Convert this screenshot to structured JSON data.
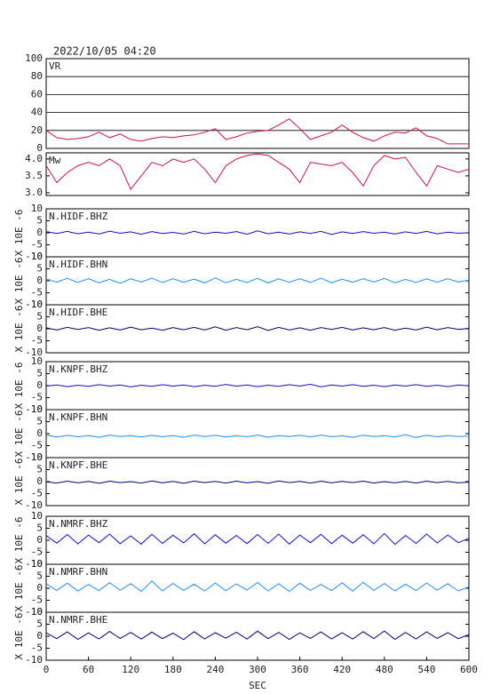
{
  "title": "2022/10/05 04:20",
  "chart_data": [
    {
      "type": "line",
      "grid": true,
      "ylim": [
        0,
        100
      ],
      "yticks": [
        0,
        20,
        40,
        60,
        80,
        100
      ],
      "x": [
        0,
        15,
        30,
        45,
        60,
        75,
        90,
        105,
        120,
        135,
        150,
        165,
        180,
        195,
        210,
        225,
        240,
        255,
        270,
        285,
        300,
        315,
        330,
        345,
        360,
        375,
        390,
        405,
        420,
        435,
        450,
        465,
        480,
        495,
        510,
        525,
        540,
        555,
        570,
        585,
        600
      ],
      "series": [
        {
          "name": "VR",
          "color": "#d0104c",
          "values": [
            20,
            12,
            10,
            11,
            13,
            18,
            12,
            16,
            10,
            8,
            11,
            13,
            12,
            14,
            15,
            18,
            22,
            10,
            13,
            17,
            19,
            20,
            26,
            33,
            22,
            10,
            14,
            18,
            26,
            18,
            12,
            8,
            14,
            18,
            17,
            23,
            14,
            11,
            5,
            5,
            5
          ]
        }
      ]
    },
    {
      "type": "line",
      "grid": false,
      "ylim": [
        2.92,
        4.18
      ],
      "yticks": [
        {
          "value": 3,
          "label": "3.0"
        },
        3.5,
        {
          "value": 4,
          "label": "4.0"
        }
      ],
      "x": [
        0,
        15,
        30,
        45,
        60,
        75,
        90,
        105,
        120,
        135,
        150,
        165,
        180,
        195,
        210,
        225,
        240,
        255,
        270,
        285,
        300,
        315,
        330,
        345,
        360,
        375,
        390,
        405,
        420,
        435,
        450,
        465,
        480,
        495,
        510,
        525,
        540,
        555,
        570,
        585,
        600
      ],
      "series": [
        {
          "name": "Mw",
          "color": "#d0104c",
          "values": [
            3.8,
            3.3,
            3.6,
            3.8,
            3.9,
            3.8,
            4.0,
            3.8,
            3.1,
            3.5,
            3.9,
            3.8,
            4.0,
            3.9,
            4.0,
            3.7,
            3.3,
            3.8,
            4.0,
            4.1,
            4.15,
            4.1,
            3.9,
            3.7,
            3.3,
            3.9,
            3.85,
            3.8,
            3.9,
            3.6,
            3.2,
            3.8,
            4.1,
            4.0,
            4.05,
            3.6,
            3.2,
            3.8,
            3.7,
            3.6,
            3.7
          ]
        }
      ]
    },
    {
      "type": "line",
      "ylabel": "X 10E -6",
      "ylim": [
        -10,
        10
      ],
      "yticks": [
        10,
        5,
        0,
        -5,
        -10
      ],
      "x": [
        0,
        15,
        30,
        45,
        60,
        75,
        90,
        105,
        120,
        135,
        150,
        165,
        180,
        195,
        210,
        225,
        240,
        255,
        270,
        285,
        300,
        315,
        330,
        345,
        360,
        375,
        390,
        405,
        420,
        435,
        450,
        465,
        480,
        495,
        510,
        525,
        540,
        555,
        570,
        585,
        600
      ],
      "series": [
        {
          "name": "N.HIDF.BHZ",
          "color": "#1010d0",
          "values": [
            0.5,
            -0.3,
            0.6,
            -0.4,
            0.3,
            -0.5,
            0.7,
            -0.2,
            0.4,
            -0.6,
            0.5,
            -0.3,
            0.2,
            -0.5,
            0.6,
            -0.4,
            0.3,
            -0.2,
            0.5,
            -0.6,
            0.8,
            -0.4,
            0.3,
            -0.5,
            0.4,
            -0.3,
            0.6,
            -0.7,
            0.4,
            -0.3,
            0.5,
            -0.2,
            0.3,
            -0.5,
            0.4,
            -0.3,
            0.6,
            -0.4,
            0.3,
            -0.2,
            0.1
          ]
        }
      ]
    },
    {
      "type": "line",
      "ylabel": "X 10E -6",
      "ylim": [
        -10,
        10
      ],
      "yticks": [
        10,
        5,
        0,
        -5,
        -10
      ],
      "x": [
        0,
        15,
        30,
        45,
        60,
        75,
        90,
        105,
        120,
        135,
        150,
        165,
        180,
        195,
        210,
        225,
        240,
        255,
        270,
        285,
        300,
        315,
        330,
        345,
        360,
        375,
        390,
        405,
        420,
        435,
        450,
        465,
        480,
        495,
        510,
        525,
        540,
        555,
        570,
        585,
        600
      ],
      "series": [
        {
          "name": "N.HIDF.BHN",
          "color": "#1e90ff",
          "values": [
            0.8,
            -0.6,
            1.0,
            -0.7,
            0.9,
            -0.8,
            0.6,
            -1.0,
            0.8,
            -0.5,
            1.1,
            -0.7,
            0.9,
            -0.6,
            0.7,
            -0.9,
            1.2,
            -0.8,
            0.6,
            -0.7,
            1.0,
            -0.9,
            0.8,
            -0.6,
            0.9,
            -0.7,
            1.1,
            -0.8,
            0.7,
            -0.6,
            0.9,
            -0.5,
            1.0,
            -0.8,
            0.6,
            -0.7,
            0.8,
            -0.6,
            0.9,
            -0.5,
            0.3
          ]
        }
      ]
    },
    {
      "type": "line",
      "ylabel": "X 10E -6",
      "ylim": [
        -10,
        10
      ],
      "yticks": [
        10,
        5,
        0,
        -5,
        -10
      ],
      "x": [
        0,
        15,
        30,
        45,
        60,
        75,
        90,
        105,
        120,
        135,
        150,
        165,
        180,
        195,
        210,
        225,
        240,
        255,
        270,
        285,
        300,
        315,
        330,
        345,
        360,
        375,
        390,
        405,
        420,
        435,
        450,
        465,
        480,
        495,
        510,
        525,
        540,
        555,
        570,
        585,
        600
      ],
      "series": [
        {
          "name": "N.HIDF.BHE",
          "color": "#000080",
          "values": [
            0.4,
            -0.5,
            0.6,
            -0.3,
            0.5,
            -0.6,
            0.4,
            -0.5,
            0.7,
            -0.4,
            0.3,
            -0.6,
            0.5,
            -0.4,
            0.6,
            -0.5,
            0.8,
            -0.6,
            0.5,
            -0.4,
            0.9,
            -0.7,
            0.6,
            -0.5,
            0.4,
            -0.6,
            0.5,
            -0.3,
            0.6,
            -0.5,
            0.4,
            -0.4,
            0.5,
            -0.6,
            0.3,
            -0.5,
            0.7,
            -0.4,
            0.5,
            -0.3,
            0.2
          ]
        }
      ]
    },
    {
      "type": "line",
      "ylabel": "X 10E -6",
      "ylim": [
        -10,
        10
      ],
      "yticks": [
        10,
        5,
        0,
        -5,
        -10
      ],
      "x": [
        0,
        15,
        30,
        45,
        60,
        75,
        90,
        105,
        120,
        135,
        150,
        165,
        180,
        195,
        210,
        225,
        240,
        255,
        270,
        285,
        300,
        315,
        330,
        345,
        360,
        375,
        390,
        405,
        420,
        435,
        450,
        465,
        480,
        495,
        510,
        525,
        540,
        555,
        570,
        585,
        600
      ],
      "series": [
        {
          "name": "N.KNPF.BHZ",
          "color": "#1010d0",
          "values": [
            -0.2,
            0.3,
            -0.4,
            0.2,
            -0.3,
            0.4,
            -0.2,
            0.3,
            -0.5,
            0.2,
            -0.3,
            0.4,
            -0.2,
            0.3,
            -0.4,
            0.2,
            -0.3,
            0.5,
            -0.2,
            0.3,
            -0.4,
            0.2,
            -0.3,
            0.4,
            -0.2,
            0.6,
            -0.5,
            0.3,
            -0.2,
            0.4,
            -0.3,
            0.2,
            -0.4,
            0.3,
            -0.2,
            0.4,
            -0.3,
            0.2,
            -0.4,
            0.3,
            -0.1
          ]
        }
      ]
    },
    {
      "type": "line",
      "ylabel": "X 10E -6",
      "ylim": [
        -10,
        10
      ],
      "yticks": [
        10,
        5,
        0,
        -5,
        -10
      ],
      "x": [
        0,
        15,
        30,
        45,
        60,
        75,
        90,
        105,
        120,
        135,
        150,
        165,
        180,
        195,
        210,
        225,
        240,
        255,
        270,
        285,
        300,
        315,
        330,
        345,
        360,
        375,
        390,
        405,
        420,
        435,
        450,
        465,
        480,
        495,
        510,
        525,
        540,
        555,
        570,
        585,
        600
      ],
      "series": [
        {
          "name": "N.KNPF.BHN",
          "color": "#1e90ff",
          "values": [
            -0.6,
            -1.4,
            -0.7,
            -1.3,
            -0.8,
            -1.5,
            -0.6,
            -1.2,
            -0.9,
            -1.4,
            -0.7,
            -1.3,
            -0.8,
            -1.5,
            -0.6,
            -1.2,
            -0.7,
            -1.4,
            -0.9,
            -1.3,
            -0.6,
            -1.5,
            -0.8,
            -1.2,
            -0.7,
            -1.4,
            -0.6,
            -1.3,
            -0.9,
            -1.5,
            -0.7,
            -1.2,
            -0.8,
            -1.4,
            -0.4,
            -1.6,
            -0.7,
            -1.3,
            -0.8,
            -1.2,
            -1.0
          ]
        }
      ]
    },
    {
      "type": "line",
      "ylabel": "X 10E -6",
      "ylim": [
        -10,
        10
      ],
      "yticks": [
        10,
        5,
        0,
        -5,
        -10
      ],
      "x": [
        0,
        15,
        30,
        45,
        60,
        75,
        90,
        105,
        120,
        135,
        150,
        165,
        180,
        195,
        210,
        225,
        240,
        255,
        270,
        285,
        300,
        315,
        330,
        345,
        360,
        375,
        390,
        405,
        420,
        435,
        450,
        465,
        480,
        495,
        510,
        525,
        540,
        555,
        570,
        585,
        600
      ],
      "series": [
        {
          "name": "N.KNPF.BHE",
          "color": "#000080",
          "values": [
            -0.1,
            -0.6,
            0.2,
            -0.5,
            0.1,
            -0.7,
            0.2,
            -0.4,
            0.0,
            -0.6,
            0.3,
            -0.5,
            0.1,
            -0.7,
            0.2,
            -0.4,
            0.1,
            -0.6,
            0.2,
            -0.5,
            0.0,
            -0.7,
            0.3,
            -0.4,
            0.1,
            -0.6,
            0.2,
            -0.5,
            0.1,
            -0.4,
            0.2,
            -0.6,
            0.0,
            -0.5,
            0.1,
            -0.6,
            0.2,
            -0.4,
            0.1,
            -0.5,
            -0.2
          ]
        }
      ]
    },
    {
      "type": "line",
      "ylabel": "X 10E -6",
      "ylim": [
        -10,
        10
      ],
      "yticks": [
        10,
        5,
        0,
        -5,
        -10
      ],
      "x": [
        0,
        15,
        30,
        45,
        60,
        75,
        90,
        105,
        120,
        135,
        150,
        165,
        180,
        195,
        210,
        225,
        240,
        255,
        270,
        285,
        300,
        315,
        330,
        345,
        360,
        375,
        390,
        405,
        420,
        435,
        450,
        465,
        480,
        495,
        510,
        525,
        540,
        555,
        570,
        585,
        600
      ],
      "series": [
        {
          "name": "N.NMRF.BHZ",
          "color": "#1010d0",
          "values": [
            2.0,
            -1.2,
            2.4,
            -1.5,
            2.2,
            -1.0,
            2.6,
            -1.4,
            1.8,
            -1.6,
            2.5,
            -1.3,
            2.1,
            -1.1,
            2.7,
            -1.5,
            2.3,
            -1.2,
            2.0,
            -1.4,
            2.4,
            -1.3,
            2.6,
            -1.6,
            2.2,
            -1.0,
            2.5,
            -1.4,
            2.1,
            -1.2,
            2.3,
            -1.5,
            2.8,
            -1.7,
            2.0,
            -1.3,
            2.6,
            -1.1,
            2.2,
            -1.0,
            0.8
          ]
        }
      ]
    },
    {
      "type": "line",
      "ylabel": "X 10E -6",
      "ylim": [
        -10,
        10
      ],
      "yticks": [
        10,
        5,
        0,
        -5,
        -10
      ],
      "x": [
        0,
        15,
        30,
        45,
        60,
        75,
        90,
        105,
        120,
        135,
        150,
        165,
        180,
        195,
        210,
        225,
        240,
        255,
        270,
        285,
        300,
        315,
        330,
        345,
        360,
        375,
        390,
        405,
        420,
        435,
        450,
        465,
        480,
        495,
        510,
        525,
        540,
        555,
        570,
        585,
        600
      ],
      "series": [
        {
          "name": "N.NMRF.BHN",
          "color": "#1e90ff",
          "values": [
            1.8,
            -0.9,
            2.1,
            -1.2,
            1.6,
            -1.0,
            2.3,
            -0.8,
            1.9,
            -1.3,
            3.0,
            -1.1,
            2.0,
            -0.9,
            1.7,
            -1.2,
            2.2,
            -1.0,
            1.8,
            -0.8,
            2.4,
            -1.1,
            1.9,
            -1.3,
            2.1,
            -0.9,
            1.6,
            -1.0,
            2.3,
            -1.2,
            2.5,
            -0.9,
            2.0,
            -1.1,
            1.7,
            -1.0,
            2.2,
            -0.8,
            1.9,
            -1.1,
            0.6
          ]
        }
      ]
    },
    {
      "type": "line",
      "ylabel": "X 10E -6",
      "ylim": [
        -10,
        10
      ],
      "yticks": [
        10,
        5,
        0,
        -5,
        -10
      ],
      "xlim": [
        0,
        600
      ],
      "xticks": [
        0,
        60,
        120,
        180,
        240,
        300,
        360,
        420,
        480,
        540,
        600
      ],
      "xlabel": "SEC",
      "x": [
        0,
        15,
        30,
        45,
        60,
        75,
        90,
        105,
        120,
        135,
        150,
        165,
        180,
        195,
        210,
        225,
        240,
        255,
        270,
        285,
        300,
        315,
        330,
        345,
        360,
        375,
        390,
        405,
        420,
        435,
        450,
        465,
        480,
        495,
        510,
        525,
        540,
        555,
        570,
        585,
        600
      ],
      "series": [
        {
          "name": "N.NMRF.BHE",
          "color": "#000080",
          "values": [
            1.5,
            -1.0,
            1.8,
            -1.3,
            1.4,
            -1.1,
            2.0,
            -0.9,
            1.6,
            -1.2,
            1.7,
            -1.0,
            1.3,
            -1.4,
            1.9,
            -1.1,
            1.5,
            -0.8,
            1.7,
            -1.2,
            2.1,
            -1.0,
            1.6,
            -1.3,
            1.4,
            -0.9,
            1.8,
            -1.1,
            1.5,
            -1.2,
            1.9,
            -1.0,
            2.2,
            -1.3,
            1.6,
            -1.1,
            1.8,
            -0.9,
            1.5,
            -1.0,
            0.7
          ]
        }
      ]
    }
  ]
}
